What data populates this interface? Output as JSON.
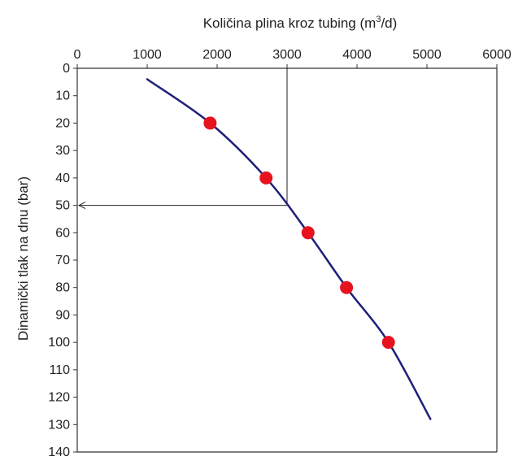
{
  "chart_data": {
    "type": "line",
    "title_main": "Količina plina kroz tubing (m",
    "title_sup": "3",
    "title_end": "/d)",
    "ylabel": "Dinamički tlak na dnu (bar)",
    "x_axis_position": "top",
    "y_axis_inverted": true,
    "xlim": [
      0,
      6000
    ],
    "ylim": [
      0,
      140
    ],
    "x_ticks": [
      0,
      1000,
      2000,
      3000,
      4000,
      5000,
      6000
    ],
    "y_ticks": [
      0,
      10,
      20,
      30,
      40,
      50,
      60,
      70,
      80,
      90,
      100,
      110,
      120,
      130,
      140
    ],
    "grid": false,
    "curve": {
      "color": "#1f1f7a",
      "points": [
        {
          "x": 1000,
          "y": 4
        },
        {
          "x": 1900,
          "y": 20
        },
        {
          "x": 2700,
          "y": 40
        },
        {
          "x": 3300,
          "y": 60
        },
        {
          "x": 3850,
          "y": 80
        },
        {
          "x": 4450,
          "y": 100
        },
        {
          "x": 5050,
          "y": 128
        }
      ]
    },
    "markers": {
      "color": "#e8121f",
      "points": [
        {
          "x": 1900,
          "y": 20
        },
        {
          "x": 2700,
          "y": 40
        },
        {
          "x": 3300,
          "y": 60
        },
        {
          "x": 3850,
          "y": 80
        },
        {
          "x": 4450,
          "y": 100
        }
      ]
    },
    "guide": {
      "x": 3000,
      "y": 50,
      "color": "#222222"
    }
  }
}
